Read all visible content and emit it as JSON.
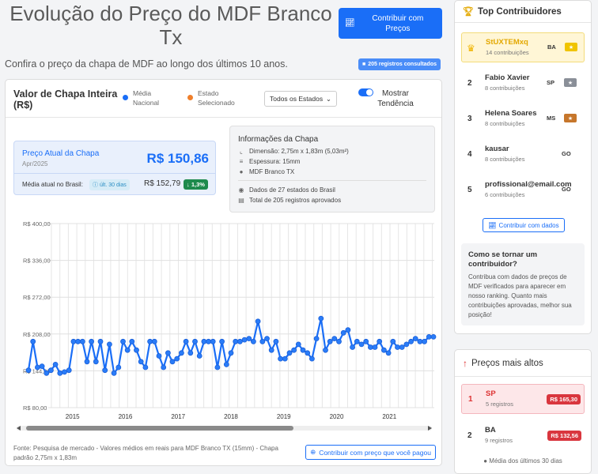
{
  "header": {
    "title": "Evolução do Preço do MDF Branco Tx",
    "subtitle": "Confira o preço da chapa de MDF ao longo dos últimos 10 anos.",
    "contribute_button": "Contribuir com Preços",
    "records_badge": "205 registros consultados"
  },
  "chart_card": {
    "title": "Valor de Chapa Inteira (R$)",
    "legend_national": "Média Nacional",
    "legend_state": "Estado Selecionado",
    "state_select": "Todos os Estados",
    "trend_toggle_label": "Mostrar Tendência",
    "colors": {
      "national": "#1a6ef7",
      "state": "#f07f2b"
    }
  },
  "current_price": {
    "label": "Preço Atual da Chapa",
    "date": "Apr/2025",
    "value": "R$ 150,86",
    "avg_label": "Média atual no Brasil:",
    "avg_badge": "últ. 30 dias",
    "avg_value": "R$ 152,79",
    "change": "1,3%"
  },
  "sheet_info": {
    "title": "Informações da Chapa",
    "dimension": "Dimensão: 2,75m x 1,83m (5,03m²)",
    "thickness": "Espessura: 15mm",
    "product": "MDF Branco TX",
    "states": "Dados de 27 estados do Brasil",
    "records": "Total de 205 registros aprovados"
  },
  "chart_data": {
    "type": "line",
    "y_ticks": [
      "R$ 80,00",
      "R$ 144,00",
      "R$ 208,00",
      "R$ 272,00",
      "R$ 336,00",
      "R$ 400,00"
    ],
    "ylim": [
      80,
      400
    ],
    "x_year_labels": [
      "2015",
      "2016",
      "2017",
      "2018",
      "2019",
      "2020",
      "2021"
    ],
    "x_start": 2014.6,
    "x_end": 2021.85,
    "series": [
      {
        "values": [
          145,
          195,
          150,
          152,
          140,
          145,
          155,
          140,
          142,
          145,
          195,
          195,
          195,
          160,
          195,
          160,
          195,
          145,
          190,
          140,
          150,
          195,
          180,
          195,
          180,
          160,
          150,
          195,
          195,
          170,
          150,
          175,
          160,
          165,
          175,
          195,
          175,
          195,
          170,
          195,
          195,
          195,
          150,
          195,
          155,
          175,
          195,
          195,
          198,
          200,
          195,
          230,
          195,
          200,
          180,
          195,
          165,
          165,
          175,
          180,
          190,
          180,
          175,
          165,
          200,
          235,
          180,
          195,
          200,
          195,
          210,
          215,
          185,
          195,
          190,
          195,
          185,
          185,
          195,
          180,
          175,
          195,
          185,
          185,
          190,
          195,
          200,
          195,
          195,
          203,
          203
        ]
      }
    ],
    "grid": true
  },
  "footer": {
    "note": "Fonte: Pesquisa de mercado - Valores médios em reais para MDF Branco TX (15mm) - Chapa padrão 2,75m x 1,83m",
    "button": "Contribuir com preço que você pagou"
  },
  "top_contributors": {
    "title": "Top Contribuidores",
    "items": [
      {
        "rank": "",
        "name": "StUXTEMxq",
        "count": "14 contribuições",
        "uf": "BA",
        "medal_color": "#f0c400"
      },
      {
        "rank": "2",
        "name": "Fabio Xavier",
        "count": "8 contribuições",
        "uf": "SP",
        "medal_color": "#8a8f98"
      },
      {
        "rank": "3",
        "name": "Helena Soares",
        "count": "8 contribuições",
        "uf": "MS",
        "medal_color": "#c6762b"
      },
      {
        "rank": "4",
        "name": "kausar",
        "count": "8 contribuições",
        "uf": "GO",
        "medal_color": ""
      },
      {
        "rank": "5",
        "name": "profissional@email.com",
        "count": "6 contribuições",
        "uf": "GO",
        "medal_color": ""
      }
    ],
    "button": "Contribuir com dados",
    "how_title": "Como se tornar um contribuidor?",
    "how_text": "Contribua com dados de preços de MDF verificados para aparecer em nosso ranking. Quanto mais contribuições aprovadas, melhor sua posição!"
  },
  "highest_prices": {
    "title": "Preços mais altos",
    "items": [
      {
        "rank": "1",
        "state": "SP",
        "count": "5 registros",
        "value": "R$ 165,30"
      },
      {
        "rank": "2",
        "state": "BA",
        "count": "9 registros",
        "value": "R$ 132,56"
      }
    ],
    "note": "Média dos últimos 30 dias"
  }
}
